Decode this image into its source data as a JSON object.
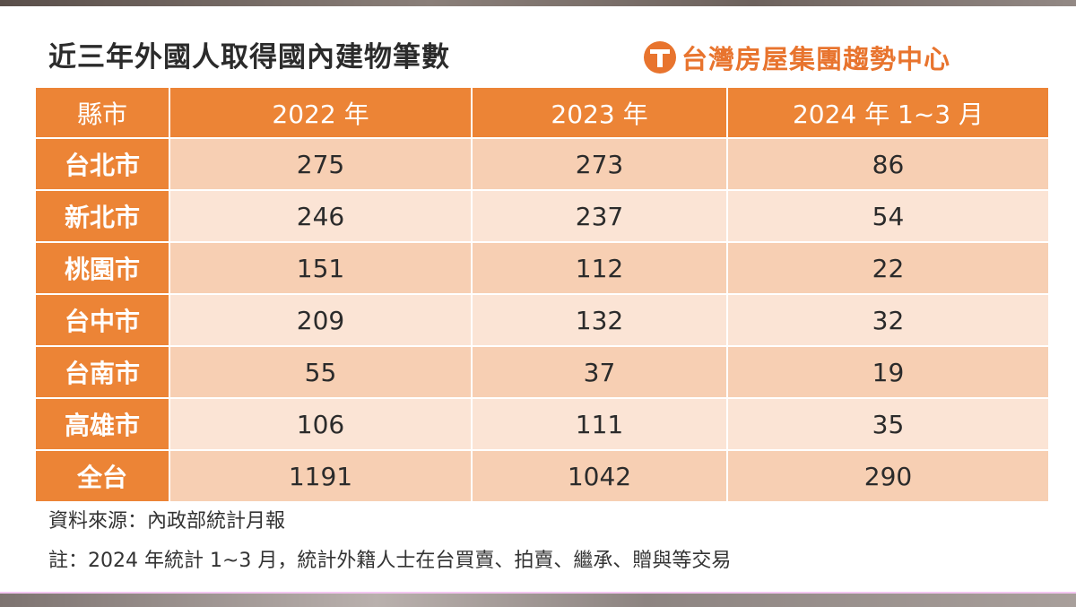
{
  "title": "近三年外國人取得國內建物筆數",
  "brand": "台灣房屋集團趨勢中心",
  "chart_data": {
    "type": "table",
    "columns": [
      "縣市",
      "2022 年",
      "2023 年",
      "2024 年 1~3 月"
    ],
    "rows": [
      {
        "region": "台北市",
        "values": [
          "275",
          "273",
          "86"
        ]
      },
      {
        "region": "新北市",
        "values": [
          "246",
          "237",
          "54"
        ]
      },
      {
        "region": "桃園市",
        "values": [
          "151",
          "112",
          "22"
        ]
      },
      {
        "region": "台中市",
        "values": [
          "209",
          "132",
          "32"
        ]
      },
      {
        "region": "台南市",
        "values": [
          "55",
          "37",
          "19"
        ]
      },
      {
        "region": "高雄市",
        "values": [
          "106",
          "111",
          "35"
        ]
      },
      {
        "region": "全台",
        "values": [
          "1191",
          "1042",
          "290"
        ]
      }
    ]
  },
  "source": "資料來源：內政部統計月報",
  "footnote": "註：2024 年統計 1~3 月，統計外籍人士在台買賣、拍賣、繼承、贈與等交易",
  "colors": {
    "header_orange": "#ec8436",
    "row_dark": "#f7cfb3",
    "row_light": "#fbe4d5",
    "brand_orange": "#e8742e"
  }
}
